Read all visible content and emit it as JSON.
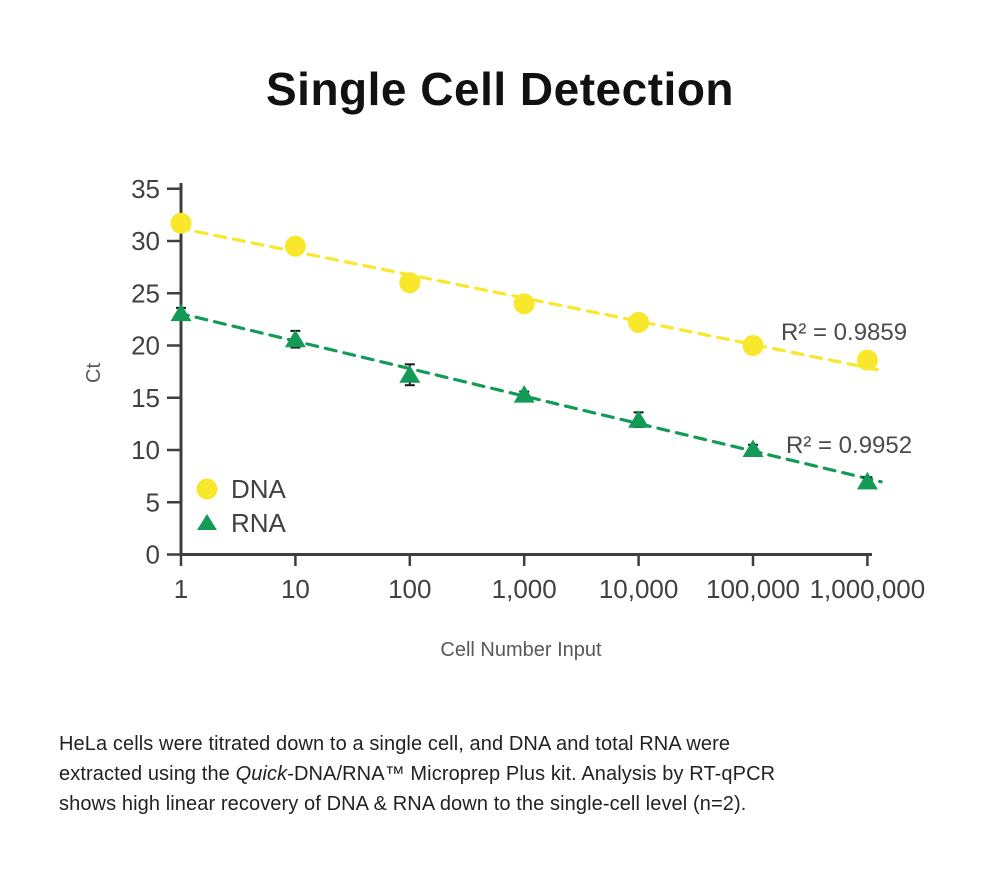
{
  "title": "Single Cell Detection",
  "caption": {
    "line1": "HeLa cells were titrated down to a single cell, and DNA and total RNA were",
    "line2_pre": "extracted using the ",
    "line2_italic": "Quick",
    "line2_post": "-DNA/RNA™ Microprep Plus kit. Analysis by RT-qPCR",
    "line3": "shows high linear recovery of DNA & RNA down to the single-cell level (n=2)."
  },
  "colors": {
    "dna": "#F8E72A",
    "rna": "#149A57",
    "axis": "#3E3E3E",
    "tick_label": "#414141",
    "axis_title": "#57585C",
    "annotation": "#4B4B4B",
    "error_bar": "#1A1A1A"
  },
  "chart_data": {
    "type": "scatter",
    "title": "Single Cell Detection",
    "xlabel": "Cell Number Input",
    "ylabel": "Ct",
    "x_scale": "log",
    "x": [
      1,
      10,
      100,
      1000,
      10000,
      100000,
      1000000
    ],
    "x_labels": [
      "1",
      "10",
      "100",
      "1,000",
      "10,000",
      "100,000",
      "1,000,000"
    ],
    "ylim": [
      0,
      35
    ],
    "y_ticks": [
      0,
      5,
      10,
      15,
      20,
      25,
      30,
      35
    ],
    "grid": false,
    "legend_position": "lower-left",
    "series": [
      {
        "name": "DNA",
        "marker": "circle",
        "color": "#F8E72A",
        "values": [
          31.7,
          29.5,
          26.0,
          24.0,
          22.2,
          20.0,
          18.6
        ],
        "errors": [
          0.5,
          0.4,
          0.5,
          0.7,
          0.5,
          0.3,
          0.2
        ],
        "r_squared_label": "R² = 0.9859",
        "trendline": {
          "style": "dashed",
          "slope_per_decade": -2.22,
          "intercept": 31.2
        }
      },
      {
        "name": "RNA",
        "marker": "triangle",
        "color": "#149A57",
        "values": [
          23.1,
          20.6,
          17.2,
          15.3,
          12.9,
          10.1,
          7.0
        ],
        "errors": [
          0.5,
          0.8,
          1.0,
          0.3,
          0.7,
          0.4,
          0.4
        ],
        "r_squared_label": "R² = 0.9952",
        "trendline": {
          "style": "dashed",
          "slope_per_decade": -2.63,
          "intercept": 23.05
        }
      }
    ]
  }
}
